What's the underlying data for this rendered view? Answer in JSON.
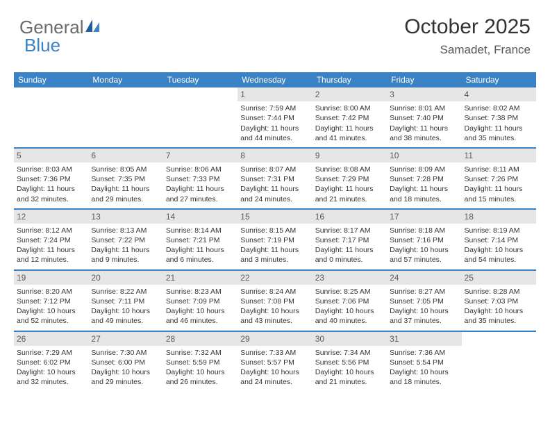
{
  "logo": {
    "part1": "General",
    "part2": "Blue"
  },
  "header": {
    "month": "October 2025",
    "location": "Samadet, France"
  },
  "colors": {
    "accent": "#3b82c4",
    "daynum_bg": "#e6e6e6",
    "text": "#333333",
    "logo_gray": "#6a6a6a"
  },
  "weekdays": [
    "Sunday",
    "Monday",
    "Tuesday",
    "Wednesday",
    "Thursday",
    "Friday",
    "Saturday"
  ],
  "weeks": [
    [
      {
        "n": "",
        "sr": "",
        "ss": "",
        "dl": ""
      },
      {
        "n": "",
        "sr": "",
        "ss": "",
        "dl": ""
      },
      {
        "n": "",
        "sr": "",
        "ss": "",
        "dl": ""
      },
      {
        "n": "1",
        "sr": "Sunrise: 7:59 AM",
        "ss": "Sunset: 7:44 PM",
        "dl": "Daylight: 11 hours and 44 minutes."
      },
      {
        "n": "2",
        "sr": "Sunrise: 8:00 AM",
        "ss": "Sunset: 7:42 PM",
        "dl": "Daylight: 11 hours and 41 minutes."
      },
      {
        "n": "3",
        "sr": "Sunrise: 8:01 AM",
        "ss": "Sunset: 7:40 PM",
        "dl": "Daylight: 11 hours and 38 minutes."
      },
      {
        "n": "4",
        "sr": "Sunrise: 8:02 AM",
        "ss": "Sunset: 7:38 PM",
        "dl": "Daylight: 11 hours and 35 minutes."
      }
    ],
    [
      {
        "n": "5",
        "sr": "Sunrise: 8:03 AM",
        "ss": "Sunset: 7:36 PM",
        "dl": "Daylight: 11 hours and 32 minutes."
      },
      {
        "n": "6",
        "sr": "Sunrise: 8:05 AM",
        "ss": "Sunset: 7:35 PM",
        "dl": "Daylight: 11 hours and 29 minutes."
      },
      {
        "n": "7",
        "sr": "Sunrise: 8:06 AM",
        "ss": "Sunset: 7:33 PM",
        "dl": "Daylight: 11 hours and 27 minutes."
      },
      {
        "n": "8",
        "sr": "Sunrise: 8:07 AM",
        "ss": "Sunset: 7:31 PM",
        "dl": "Daylight: 11 hours and 24 minutes."
      },
      {
        "n": "9",
        "sr": "Sunrise: 8:08 AM",
        "ss": "Sunset: 7:29 PM",
        "dl": "Daylight: 11 hours and 21 minutes."
      },
      {
        "n": "10",
        "sr": "Sunrise: 8:09 AM",
        "ss": "Sunset: 7:28 PM",
        "dl": "Daylight: 11 hours and 18 minutes."
      },
      {
        "n": "11",
        "sr": "Sunrise: 8:11 AM",
        "ss": "Sunset: 7:26 PM",
        "dl": "Daylight: 11 hours and 15 minutes."
      }
    ],
    [
      {
        "n": "12",
        "sr": "Sunrise: 8:12 AM",
        "ss": "Sunset: 7:24 PM",
        "dl": "Daylight: 11 hours and 12 minutes."
      },
      {
        "n": "13",
        "sr": "Sunrise: 8:13 AM",
        "ss": "Sunset: 7:22 PM",
        "dl": "Daylight: 11 hours and 9 minutes."
      },
      {
        "n": "14",
        "sr": "Sunrise: 8:14 AM",
        "ss": "Sunset: 7:21 PM",
        "dl": "Daylight: 11 hours and 6 minutes."
      },
      {
        "n": "15",
        "sr": "Sunrise: 8:15 AM",
        "ss": "Sunset: 7:19 PM",
        "dl": "Daylight: 11 hours and 3 minutes."
      },
      {
        "n": "16",
        "sr": "Sunrise: 8:17 AM",
        "ss": "Sunset: 7:17 PM",
        "dl": "Daylight: 11 hours and 0 minutes."
      },
      {
        "n": "17",
        "sr": "Sunrise: 8:18 AM",
        "ss": "Sunset: 7:16 PM",
        "dl": "Daylight: 10 hours and 57 minutes."
      },
      {
        "n": "18",
        "sr": "Sunrise: 8:19 AM",
        "ss": "Sunset: 7:14 PM",
        "dl": "Daylight: 10 hours and 54 minutes."
      }
    ],
    [
      {
        "n": "19",
        "sr": "Sunrise: 8:20 AM",
        "ss": "Sunset: 7:12 PM",
        "dl": "Daylight: 10 hours and 52 minutes."
      },
      {
        "n": "20",
        "sr": "Sunrise: 8:22 AM",
        "ss": "Sunset: 7:11 PM",
        "dl": "Daylight: 10 hours and 49 minutes."
      },
      {
        "n": "21",
        "sr": "Sunrise: 8:23 AM",
        "ss": "Sunset: 7:09 PM",
        "dl": "Daylight: 10 hours and 46 minutes."
      },
      {
        "n": "22",
        "sr": "Sunrise: 8:24 AM",
        "ss": "Sunset: 7:08 PM",
        "dl": "Daylight: 10 hours and 43 minutes."
      },
      {
        "n": "23",
        "sr": "Sunrise: 8:25 AM",
        "ss": "Sunset: 7:06 PM",
        "dl": "Daylight: 10 hours and 40 minutes."
      },
      {
        "n": "24",
        "sr": "Sunrise: 8:27 AM",
        "ss": "Sunset: 7:05 PM",
        "dl": "Daylight: 10 hours and 37 minutes."
      },
      {
        "n": "25",
        "sr": "Sunrise: 8:28 AM",
        "ss": "Sunset: 7:03 PM",
        "dl": "Daylight: 10 hours and 35 minutes."
      }
    ],
    [
      {
        "n": "26",
        "sr": "Sunrise: 7:29 AM",
        "ss": "Sunset: 6:02 PM",
        "dl": "Daylight: 10 hours and 32 minutes."
      },
      {
        "n": "27",
        "sr": "Sunrise: 7:30 AM",
        "ss": "Sunset: 6:00 PM",
        "dl": "Daylight: 10 hours and 29 minutes."
      },
      {
        "n": "28",
        "sr": "Sunrise: 7:32 AM",
        "ss": "Sunset: 5:59 PM",
        "dl": "Daylight: 10 hours and 26 minutes."
      },
      {
        "n": "29",
        "sr": "Sunrise: 7:33 AM",
        "ss": "Sunset: 5:57 PM",
        "dl": "Daylight: 10 hours and 24 minutes."
      },
      {
        "n": "30",
        "sr": "Sunrise: 7:34 AM",
        "ss": "Sunset: 5:56 PM",
        "dl": "Daylight: 10 hours and 21 minutes."
      },
      {
        "n": "31",
        "sr": "Sunrise: 7:36 AM",
        "ss": "Sunset: 5:54 PM",
        "dl": "Daylight: 10 hours and 18 minutes."
      },
      {
        "n": "",
        "sr": "",
        "ss": "",
        "dl": ""
      }
    ]
  ]
}
